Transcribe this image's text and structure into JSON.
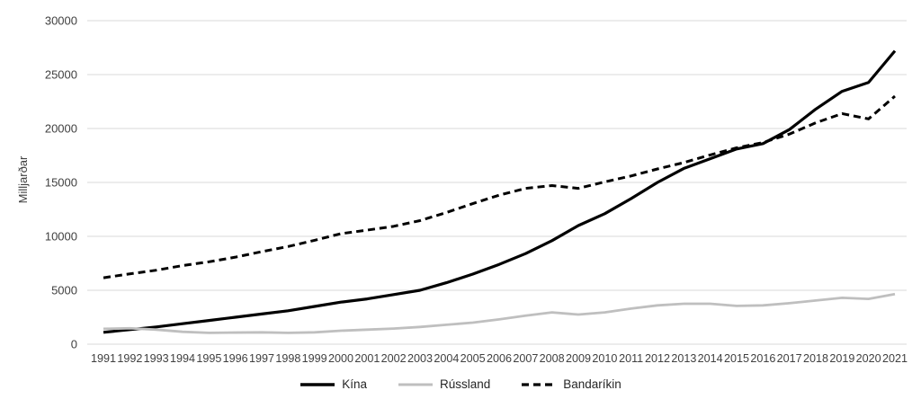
{
  "chart_data": {
    "type": "line",
    "title": "",
    "ylabel": "Milljarðar",
    "xlabel": "",
    "ylim": [
      0,
      30000
    ],
    "yticks": [
      0,
      5000,
      10000,
      15000,
      20000,
      25000,
      30000
    ],
    "grid": true,
    "legend_position": "bottom",
    "x": [
      1991,
      1992,
      1993,
      1994,
      1995,
      1996,
      1997,
      1998,
      1999,
      2000,
      2001,
      2002,
      2003,
      2004,
      2005,
      2006,
      2007,
      2008,
      2009,
      2010,
      2011,
      2012,
      2013,
      2014,
      2015,
      2016,
      2017,
      2018,
      2019,
      2020,
      2021
    ],
    "series": [
      {
        "name": "Kína",
        "color": "#000000",
        "style": "solid",
        "width": 3.2,
        "values": [
          1100,
          1350,
          1600,
          1900,
          2200,
          2500,
          2800,
          3100,
          3500,
          3900,
          4200,
          4600,
          5000,
          5700,
          6500,
          7400,
          8400,
          9600,
          11000,
          12100,
          13500,
          15000,
          16300,
          17200,
          18100,
          18600,
          19900,
          21800,
          23450,
          24270,
          27200
        ]
      },
      {
        "name": "Rússland",
        "color": "#BFBFBF",
        "style": "solid",
        "width": 2.8,
        "values": [
          1420,
          1480,
          1350,
          1150,
          1050,
          1080,
          1100,
          1050,
          1100,
          1250,
          1350,
          1450,
          1600,
          1800,
          2000,
          2300,
          2650,
          2950,
          2750,
          2950,
          3300,
          3600,
          3750,
          3750,
          3550,
          3600,
          3800,
          4050,
          4300,
          4200,
          4650
        ]
      },
      {
        "name": "Bandaríkin",
        "color": "#000000",
        "style": "dashed",
        "width": 3,
        "values": [
          6160,
          6520,
          6860,
          7290,
          7640,
          8070,
          8580,
          9060,
          9630,
          10250,
          10580,
          10930,
          11460,
          12210,
          13040,
          13820,
          14450,
          14710,
          14450,
          15050,
          15600,
          16250,
          16840,
          17550,
          18210,
          18700,
          19480,
          20530,
          21380,
          20890,
          23000
        ]
      }
    ]
  },
  "colors": {
    "gridline": "#D9D9D9",
    "axis_text": "#404040"
  }
}
